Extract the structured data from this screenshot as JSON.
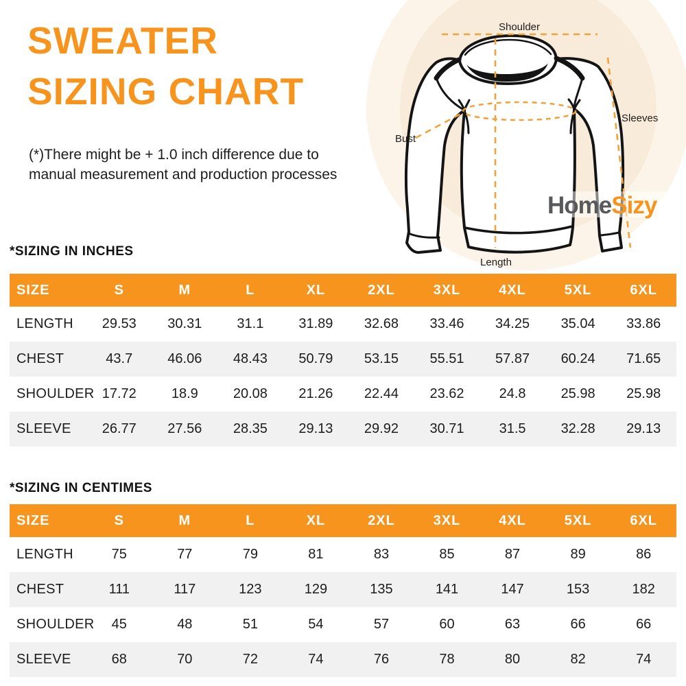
{
  "header": {
    "title_line1": "SWEATER",
    "title_line2": "SIZING CHART",
    "disclaimer_line1": "(*)There might be + 1.0 inch difference due to",
    "disclaimer_line2": "manual measurement and production processes"
  },
  "illustration": {
    "labels": {
      "shoulder": "Shoulder",
      "sleeves": "Sleeves",
      "bust": "Bust",
      "length": "Length"
    },
    "logo": {
      "part1": "Home",
      "part2": "Sizy"
    }
  },
  "colors": {
    "accent_orange": "#F7941D",
    "dash_orange": "#F1A33B",
    "circle_outer_cream": "#FCF4E9",
    "circle_inner_cream": "#F8EBD9",
    "row_stripe_gray": "#F1F1F2",
    "header_text_white": "#FFFFFF",
    "body_text_dark": "#1C1C1C",
    "logo_gray": "#58595B",
    "logo_orange": "#F7941E"
  },
  "tables": [
    {
      "heading": "*SIZING IN INCHES",
      "columns": [
        "SIZE",
        "S",
        "M",
        "L",
        "XL",
        "2XL",
        "3XL",
        "4XL",
        "5XL",
        "6XL"
      ],
      "rows": [
        {
          "label": "LENGTH",
          "values": [
            "29.53",
            "30.31",
            "31.1",
            "31.89",
            "32.68",
            "33.46",
            "34.25",
            "35.04",
            "33.86"
          ]
        },
        {
          "label": "CHEST",
          "values": [
            "43.7",
            "46.06",
            "48.43",
            "50.79",
            "53.15",
            "55.51",
            "57.87",
            "60.24",
            "71.65"
          ]
        },
        {
          "label": "SHOULDER",
          "values": [
            "17.72",
            "18.9",
            "20.08",
            "21.26",
            "22.44",
            "23.62",
            "24.8",
            "25.98",
            "25.98"
          ]
        },
        {
          "label": "SLEEVE",
          "values": [
            "26.77",
            "27.56",
            "28.35",
            "29.13",
            "29.92",
            "30.71",
            "31.5",
            "32.28",
            "29.13"
          ]
        }
      ]
    },
    {
      "heading": "*SIZING IN CENTIMES",
      "columns": [
        "SIZE",
        "S",
        "M",
        "L",
        "XL",
        "2XL",
        "3XL",
        "4XL",
        "5XL",
        "6XL"
      ],
      "rows": [
        {
          "label": "LENGTH",
          "values": [
            "75",
            "77",
            "79",
            "81",
            "83",
            "85",
            "87",
            "89",
            "86"
          ]
        },
        {
          "label": "CHEST",
          "values": [
            "111",
            "117",
            "123",
            "129",
            "135",
            "141",
            "147",
            "153",
            "182"
          ]
        },
        {
          "label": "SHOULDER",
          "values": [
            "45",
            "48",
            "51",
            "54",
            "57",
            "60",
            "63",
            "66",
            "66"
          ]
        },
        {
          "label": "SLEEVE",
          "values": [
            "68",
            "70",
            "72",
            "74",
            "76",
            "78",
            "80",
            "82",
            "74"
          ]
        }
      ]
    }
  ]
}
